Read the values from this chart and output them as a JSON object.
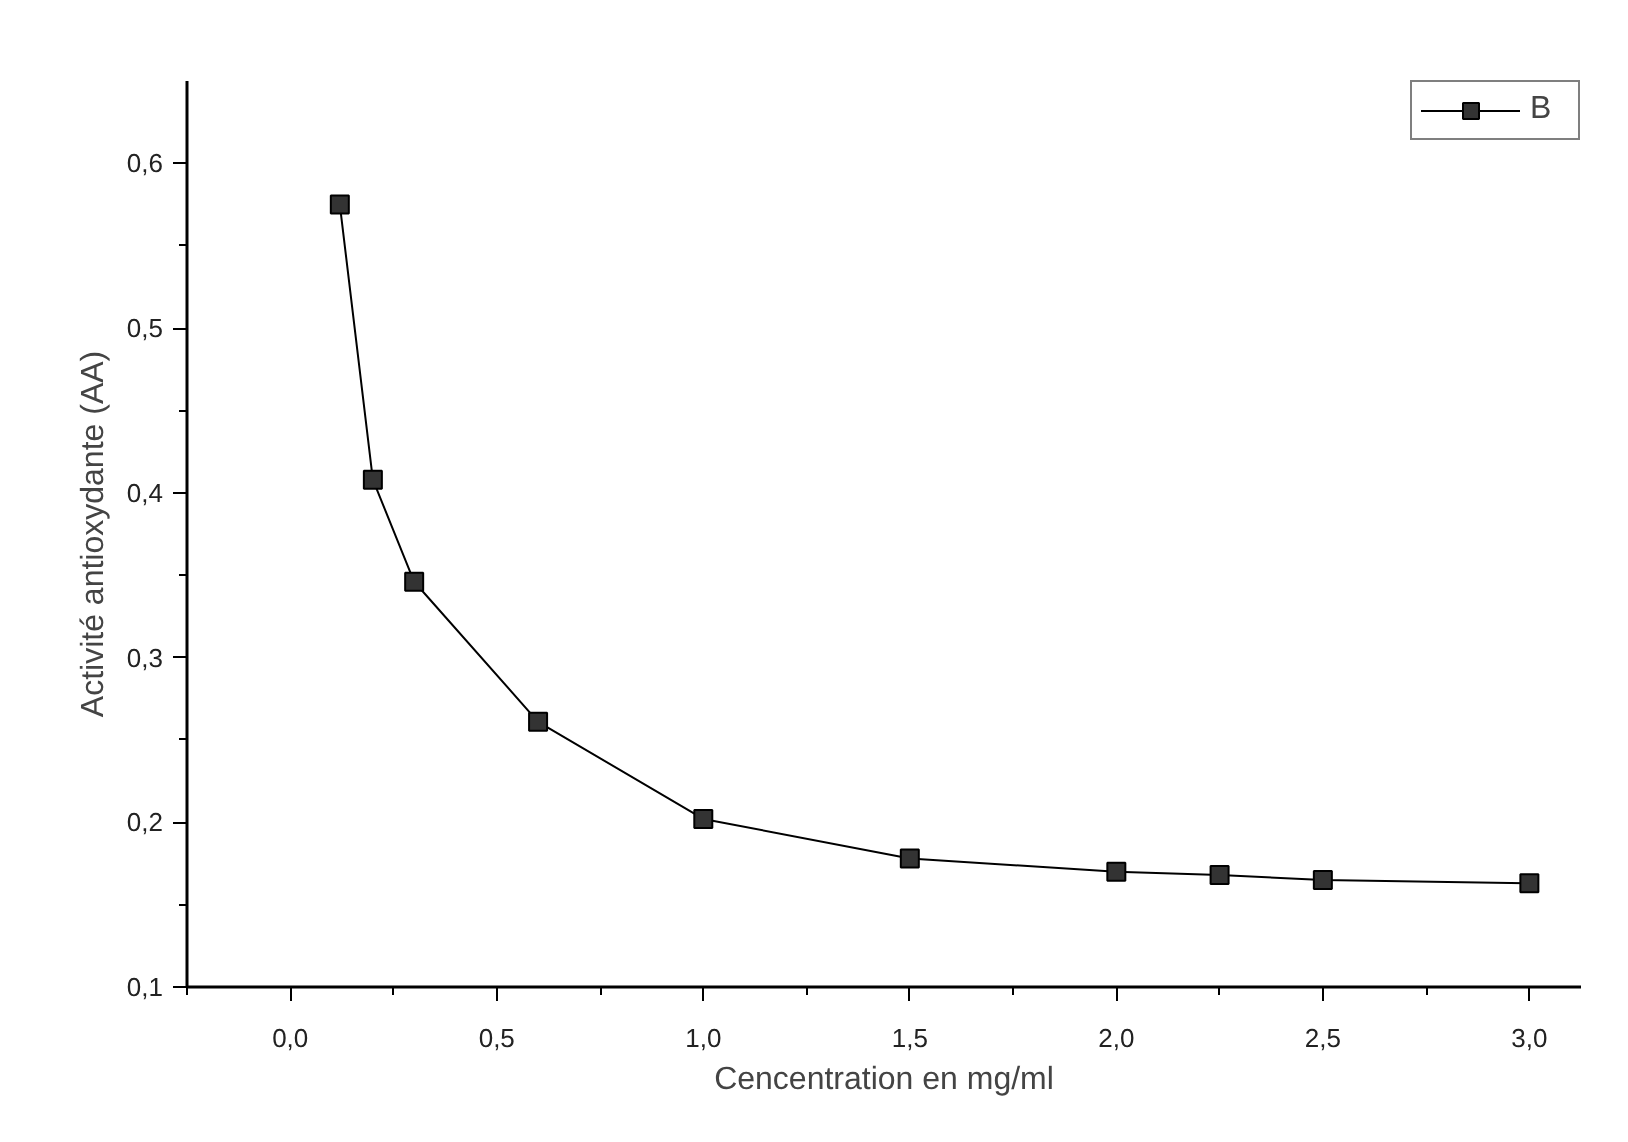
{
  "chart_data": {
    "type": "line",
    "xlabel": "Cencentration en mg/ml",
    "ylabel": "Activité antioxydante (AA)",
    "x": [
      0.12,
      0.2,
      0.3,
      0.6,
      1.0,
      1.5,
      2.0,
      2.25,
      2.5,
      3.0
    ],
    "series": [
      {
        "name": "B",
        "color": "#333333",
        "values": [
          0.575,
          0.408,
          0.346,
          0.261,
          0.202,
          0.178,
          0.17,
          0.168,
          0.165,
          0.163
        ]
      }
    ],
    "xlim": [
      -0.25,
      3.125
    ],
    "ylim": [
      0.1,
      0.65
    ],
    "xticks": [
      {
        "value": -0.25,
        "label": null
      },
      {
        "value": 0,
        "label": "0,0"
      },
      {
        "value": 0.25,
        "label": null
      },
      {
        "value": 0.5,
        "label": "0,5"
      },
      {
        "value": 0.75,
        "label": null
      },
      {
        "value": 1,
        "label": "1,0"
      },
      {
        "value": 1.25,
        "label": null
      },
      {
        "value": 1.5,
        "label": "1,5"
      },
      {
        "value": 1.75,
        "label": null
      },
      {
        "value": 2,
        "label": "2,0"
      },
      {
        "value": 2.25,
        "label": null
      },
      {
        "value": 2.5,
        "label": "2,5"
      },
      {
        "value": 2.75,
        "label": null
      },
      {
        "value": 3,
        "label": "3,0"
      }
    ],
    "yticks": [
      {
        "value": 0.1,
        "label": "0,1"
      },
      {
        "value": 0.15,
        "label": null
      },
      {
        "value": 0.2,
        "label": "0,2"
      },
      {
        "value": 0.25,
        "label": null
      },
      {
        "value": 0.3,
        "label": "0,3"
      },
      {
        "value": 0.35,
        "label": null
      },
      {
        "value": 0.4,
        "label": "0,4"
      },
      {
        "value": 0.45,
        "label": null
      },
      {
        "value": 0.5,
        "label": "0,5"
      },
      {
        "value": 0.55,
        "label": null
      },
      {
        "value": 0.6,
        "label": "0,6"
      }
    ],
    "grid": false,
    "legend": "top right",
    "marker": "square",
    "line_style": "solid"
  }
}
